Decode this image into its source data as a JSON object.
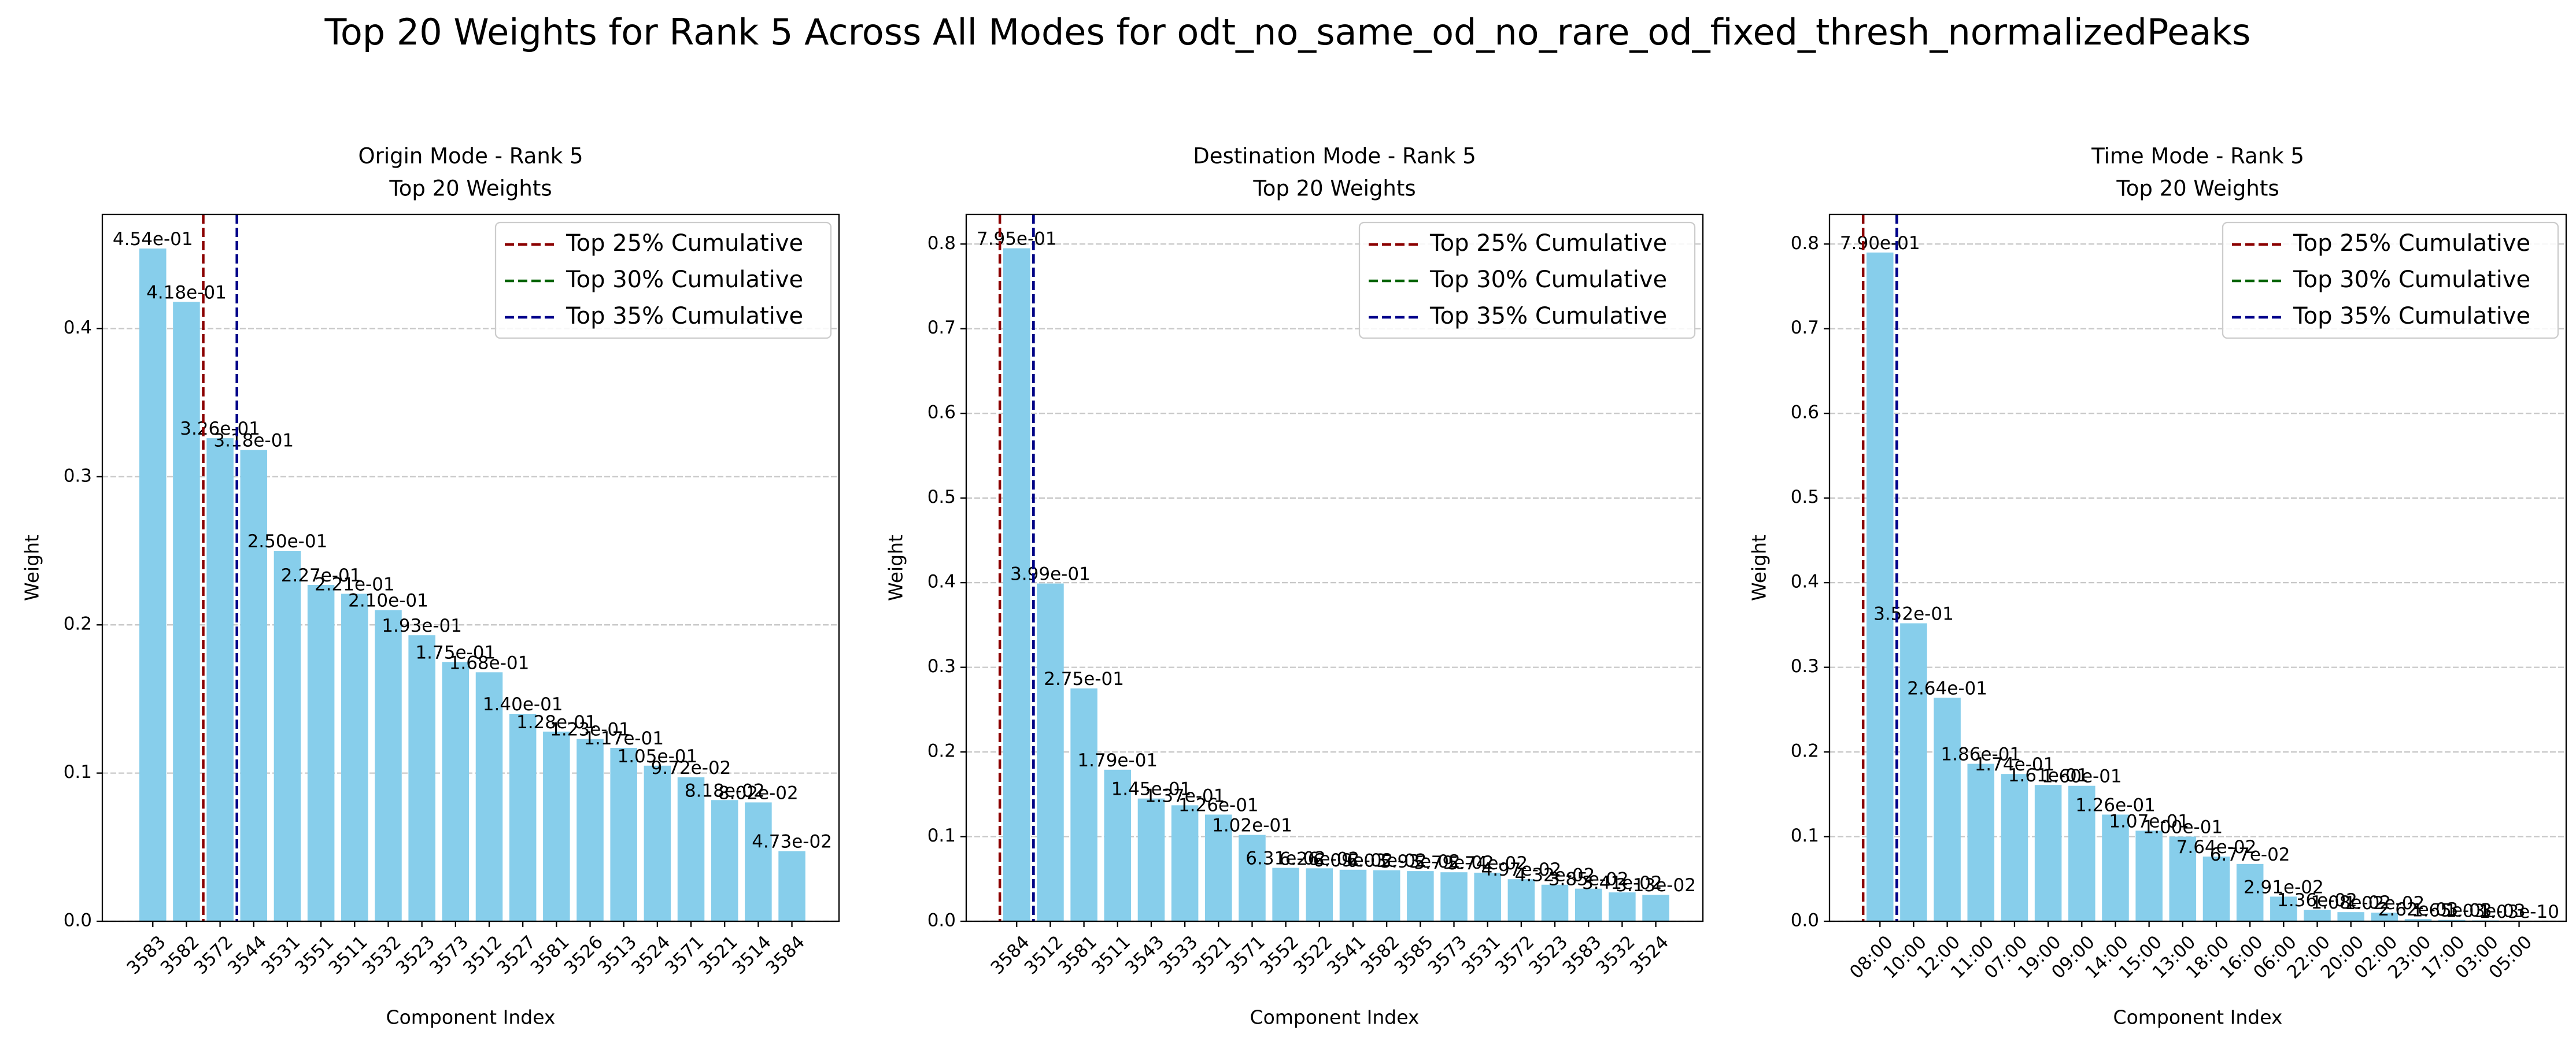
{
  "title": "Top 20 Weights for Rank 5 Across All Modes for odt_no_same_od_no_rare_od_fixed_thresh_normalizedPeaks",
  "chart_data": [
    {
      "type": "bar",
      "title": "Origin Mode - Rank 5",
      "subtitle": "Top 20 Weights",
      "x_label": "Component Index",
      "y_label": "Weight",
      "categories": [
        "3583",
        "3582",
        "3572",
        "3544",
        "3531",
        "3551",
        "3511",
        "3532",
        "3523",
        "3573",
        "3512",
        "3527",
        "3581",
        "3526",
        "3513",
        "3524",
        "3571",
        "3521",
        "3514",
        "3584"
      ],
      "values": [
        0.454,
        0.418,
        0.326,
        0.318,
        0.25,
        0.227,
        0.221,
        0.21,
        0.193,
        0.175,
        0.168,
        0.14,
        0.128,
        0.123,
        0.117,
        0.105,
        0.0972,
        0.0818,
        0.0802,
        0.0473
      ],
      "value_labels": [
        "4.54e-01",
        "4.18e-01",
        "3.26e-01",
        "3.18e-01",
        "2.50e-01",
        "2.27e-01",
        "2.21e-01",
        "2.10e-01",
        "1.93e-01",
        "1.75e-01",
        "1.68e-01",
        "1.40e-01",
        "1.28e-01",
        "1.23e-01",
        "1.17e-01",
        "1.05e-01",
        "9.72e-02",
        "8.18e-02",
        "8.02e-02",
        "4.73e-02"
      ],
      "color": "#87ceeb",
      "xlim": [
        -1.5,
        20.4
      ],
      "ylim": [
        0,
        0.477
      ],
      "yticks": [
        {
          "value": 0,
          "label": "0.0"
        },
        0.1,
        0.2,
        0.3,
        0.4
      ],
      "grid": true,
      "legend": "upper right",
      "vlines": [
        {
          "name": "Top 25% Cumulative",
          "color": "#8b0000",
          "x": 1.5
        },
        {
          "name": "Top 30% Cumulative",
          "color": "#006400",
          "x": 2.5
        },
        {
          "name": "Top 35% Cumulative",
          "color": "#00008b",
          "x": 2.5
        }
      ]
    },
    {
      "type": "bar",
      "title": "Destination Mode - Rank 5",
      "subtitle": "Top 20 Weights",
      "x_label": "Component Index",
      "y_label": "Weight",
      "categories": [
        "3584",
        "3512",
        "3581",
        "3511",
        "3543",
        "3533",
        "3521",
        "3571",
        "3552",
        "3522",
        "3541",
        "3582",
        "3585",
        "3573",
        "3531",
        "3572",
        "3523",
        "3583",
        "3532",
        "3524"
      ],
      "values": [
        0.795,
        0.399,
        0.275,
        0.179,
        0.145,
        0.137,
        0.126,
        0.102,
        0.0631,
        0.0626,
        0.0609,
        0.0603,
        0.0593,
        0.0579,
        0.0574,
        0.0497,
        0.0432,
        0.0385,
        0.0341,
        0.0313
      ],
      "value_labels": [
        "7.95e-01",
        "3.99e-01",
        "2.75e-01",
        "1.79e-01",
        "1.45e-01",
        "1.37e-01",
        "1.26e-01",
        "1.02e-01",
        "6.31e-02",
        "6.26e-02",
        "6.09e-02",
        "6.03e-02",
        "5.93e-02",
        "5.79e-02",
        "5.74e-02",
        "4.97e-02",
        "4.32e-02",
        "3.85e-02",
        "3.41e-02",
        "3.13e-02"
      ],
      "color": "#87ceeb",
      "xlim": [
        -1.5,
        20.4
      ],
      "ylim": [
        0,
        0.835
      ],
      "yticks": [
        {
          "value": 0,
          "label": "0.0"
        },
        0.1,
        0.2,
        0.3,
        0.4,
        0.5,
        0.6,
        0.7,
        0.8
      ],
      "grid": true,
      "legend": "upper right",
      "vlines": [
        {
          "name": "Top 25% Cumulative",
          "color": "#8b0000",
          "x": -0.5
        },
        {
          "name": "Top 30% Cumulative",
          "color": "#006400",
          "x": 0.5
        },
        {
          "name": "Top 35% Cumulative",
          "color": "#00008b",
          "x": 0.5
        }
      ]
    },
    {
      "type": "bar",
      "title": "Time Mode - Rank 5",
      "subtitle": "Top 20 Weights",
      "x_label": "Component Index",
      "y_label": "Weight",
      "categories": [
        "08:00",
        "10:00",
        "12:00",
        "11:00",
        "07:00",
        "19:00",
        "09:00",
        "14:00",
        "15:00",
        "13:00",
        "18:00",
        "16:00",
        "06:00",
        "22:00",
        "20:00",
        "02:00",
        "23:00",
        "17:00",
        "03:00",
        "05:00"
      ],
      "values": [
        0.79,
        0.352,
        0.264,
        0.186,
        0.174,
        0.161,
        0.16,
        0.126,
        0.107,
        0.1,
        0.0764,
        0.0677,
        0.0291,
        0.0136,
        0.0108,
        0.0102,
        0.00262,
        0.00165,
        0.00103,
        1.03e-10
      ],
      "value_labels": [
        "7.90e-01",
        "3.52e-01",
        "2.64e-01",
        "1.86e-01",
        "1.74e-01",
        "1.61e-01",
        "1.60e-01",
        "1.26e-01",
        "1.07e-01",
        "1.00e-01",
        "7.64e-02",
        "6.77e-02",
        "2.91e-02",
        "1.36e-02",
        "1.08e-02",
        "1.02e-02",
        "2.62e-03",
        "1.65e-03",
        "1.03e-03",
        "1.03e-10"
      ],
      "color": "#87ceeb",
      "xlim": [
        -1.5,
        20.4
      ],
      "ylim": [
        0,
        0.835
      ],
      "yticks": [
        {
          "value": 0,
          "label": "0.0"
        },
        0.1,
        0.2,
        0.3,
        0.4,
        0.5,
        0.6,
        0.7,
        0.8
      ],
      "grid": true,
      "legend": "upper right",
      "vlines": [
        {
          "name": "Top 25% Cumulative",
          "color": "#8b0000",
          "x": -0.5
        },
        {
          "name": "Top 30% Cumulative",
          "color": "#006400",
          "x": 0.5
        },
        {
          "name": "Top 35% Cumulative",
          "color": "#00008b",
          "x": 0.5
        }
      ]
    }
  ]
}
